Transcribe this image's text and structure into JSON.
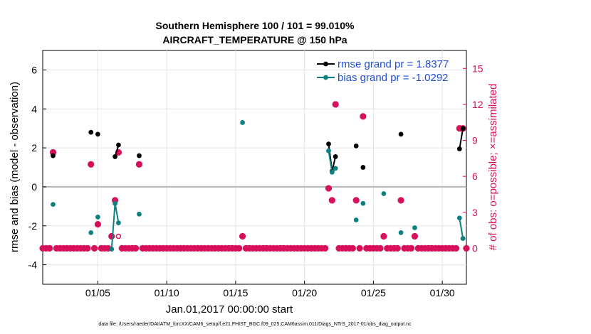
{
  "titles": {
    "line1": "Southern Hemisphere 100 / 101 = 99.010%",
    "line2": "AIRCRAFT_TEMPERATURE @ 150 hPa"
  },
  "axes": {
    "xlabel": "Jan.01,2017 00:00:00 start",
    "ylabel_left": "rmse and bias (model - observation)",
    "ylabel_right": "# of obs: o=possible; ×=assimilated"
  },
  "footer": "data file: /Users/raeder/DAI/ATM_forcXX/CAM6_setup/f.e21.FHIST_BGC.f09_025.CAM6assim.011/Diags_NTrS_2017-01/obs_diag_output.nc",
  "colors": {
    "rmse": "#000000",
    "bias": "#0e8080",
    "count": "#d6105a",
    "legend_text": "#1f4fd6",
    "zero_line": "#b5b5b5",
    "grid": "#e3e3e3"
  },
  "chart_data": {
    "type": "line",
    "x_unit": "day of January 2017",
    "xlim": [
      1.0,
      31.75
    ],
    "x_ticks": [
      5,
      10,
      15,
      20,
      25,
      30
    ],
    "x_tick_labels": [
      "01/05",
      "01/10",
      "01/15",
      "01/20",
      "01/25",
      "01/30"
    ],
    "ylim_left": [
      -5,
      7
    ],
    "y_ticks_left": [
      -4,
      -2,
      0,
      2,
      4,
      6
    ],
    "ylim_right": [
      -3,
      16.5
    ],
    "y_ticks_right": [
      0,
      3,
      6,
      9,
      12,
      15
    ],
    "grid": true,
    "legend_position": "top-right",
    "legend": [
      {
        "key": "rmse",
        "label": "rmse grand pr = 1.8377"
      },
      {
        "key": "bias",
        "label": "bias grand pr = -1.0292"
      }
    ],
    "series": [
      {
        "name": "rmse grand pr = 1.8377",
        "key": "rmse",
        "axis": "left",
        "segments": [
          [
            [
              1.75,
              1.6
            ]
          ],
          [
            [
              4.5,
              2.8
            ]
          ],
          [
            [
              5.0,
              2.7
            ]
          ],
          [
            [
              6.25,
              1.55
            ],
            [
              6.5,
              2.15
            ]
          ],
          [
            [
              8.0,
              1.6
            ]
          ],
          [
            [
              21.75,
              2.2
            ],
            [
              22.0,
              0.8
            ],
            [
              22.25,
              1.55
            ]
          ],
          [
            [
              23.75,
              2.1
            ]
          ],
          [
            [
              24.25,
              1.0
            ]
          ],
          [
            [
              27.0,
              2.7
            ]
          ],
          [
            [
              31.25,
              1.95
            ],
            [
              31.5,
              3.0
            ]
          ]
        ]
      },
      {
        "name": "bias grand pr = -1.0292",
        "key": "bias",
        "axis": "left",
        "segments": [
          [
            [
              1.75,
              -0.9
            ]
          ],
          [
            [
              4.5,
              -2.35
            ]
          ],
          [
            [
              5.0,
              -1.55
            ]
          ],
          [
            [
              6.0,
              -3.2
            ],
            [
              6.25,
              -0.85
            ],
            [
              6.5,
              -1.85
            ]
          ],
          [
            [
              8.0,
              -1.4
            ]
          ],
          [
            [
              15.5,
              3.3
            ]
          ],
          [
            [
              21.75,
              1.85
            ],
            [
              22.0,
              0.75
            ],
            [
              22.25,
              0.95
            ]
          ],
          [
            [
              23.75,
              -1.7
            ]
          ],
          [
            [
              24.25,
              -0.85
            ]
          ],
          [
            [
              25.75,
              -0.35
            ]
          ],
          [
            [
              27.0,
              -2.35
            ]
          ],
          [
            [
              28.0,
              -2.1
            ]
          ],
          [
            [
              31.25,
              -1.6
            ],
            [
              31.5,
              -2.65
            ]
          ]
        ]
      }
    ],
    "obs_assimilated": {
      "axis": "right",
      "nonzero": [
        [
          1.75,
          8
        ],
        [
          4.5,
          7
        ],
        [
          5.0,
          2
        ],
        [
          6.0,
          1
        ],
        [
          6.25,
          4
        ],
        [
          6.5,
          8
        ],
        [
          8.0,
          7
        ],
        [
          15.5,
          1
        ],
        [
          21.75,
          5
        ],
        [
          22.0,
          4
        ],
        [
          22.25,
          12
        ],
        [
          23.75,
          4
        ],
        [
          24.25,
          11
        ],
        [
          25.75,
          1
        ],
        [
          27.0,
          4
        ],
        [
          28.0,
          1
        ],
        [
          31.25,
          10
        ],
        [
          31.5,
          10
        ]
      ],
      "zero_value": 0,
      "x_start": 1.0,
      "x_end": 31.75,
      "x_step": 0.25
    },
    "obs_possible_only": {
      "axis": "right",
      "points": [
        [
          6.5,
          1
        ]
      ]
    }
  }
}
